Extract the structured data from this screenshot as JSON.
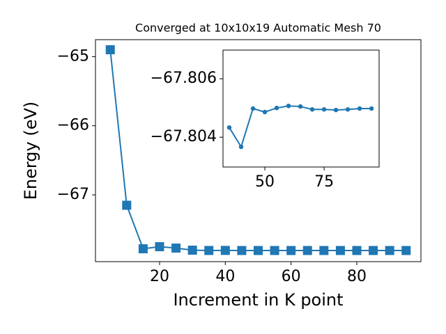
{
  "chart_data": [
    {
      "type": "line",
      "title": "Converged at 10x10x19 Automatic Mesh 70",
      "x_label": "Increment in K point",
      "y_label": "Energy (eV)",
      "x": [
        5,
        10,
        15,
        20,
        25,
        30,
        35,
        40,
        45,
        50,
        55,
        60,
        65,
        70,
        75,
        80,
        85,
        90,
        95
      ],
      "series": [
        {
          "color": "#1f77b4",
          "marker": "square",
          "values": [
            -64.9,
            -67.15,
            -67.78,
            -67.75,
            -67.77,
            -67.8,
            -67.8043,
            -67.8037,
            -67.805,
            -67.8049,
            -67.805,
            -67.8051,
            -67.805,
            -67.805,
            -67.805,
            -67.8049,
            -67.805,
            -67.805,
            -67.805
          ]
        }
      ],
      "xlim": [
        0.5,
        99.5
      ],
      "ylim": [
        -67.966,
        -64.754
      ],
      "xticks": [
        20,
        40,
        60,
        80
      ],
      "yticks": [
        {
          "value": -67,
          "label": "−67"
        },
        {
          "value": -66,
          "label": "−66"
        },
        {
          "value": -65,
          "label": "−65"
        }
      ]
    },
    {
      "type": "line",
      "x": [
        35,
        40,
        45,
        50,
        55,
        60,
        65,
        70,
        75,
        80,
        85,
        90,
        95
      ],
      "series": [
        {
          "color": "#1f77b4",
          "marker": "circle",
          "values": [
            -67.80433,
            -67.80367,
            -67.80498,
            -67.80486,
            -67.805,
            -67.80507,
            -67.80505,
            -67.80495,
            -67.80495,
            -67.80493,
            -67.80495,
            -67.80498,
            -67.80498
          ]
        }
      ],
      "xlim": [
        32.35,
        98.2
      ],
      "ylim": [
        -67.80298,
        -67.80698
      ],
      "xticks": [
        50,
        75
      ],
      "yticks": [
        {
          "value": -67.804,
          "label": "−67.804"
        },
        {
          "value": -67.806,
          "label": "−67.806"
        }
      ]
    }
  ]
}
